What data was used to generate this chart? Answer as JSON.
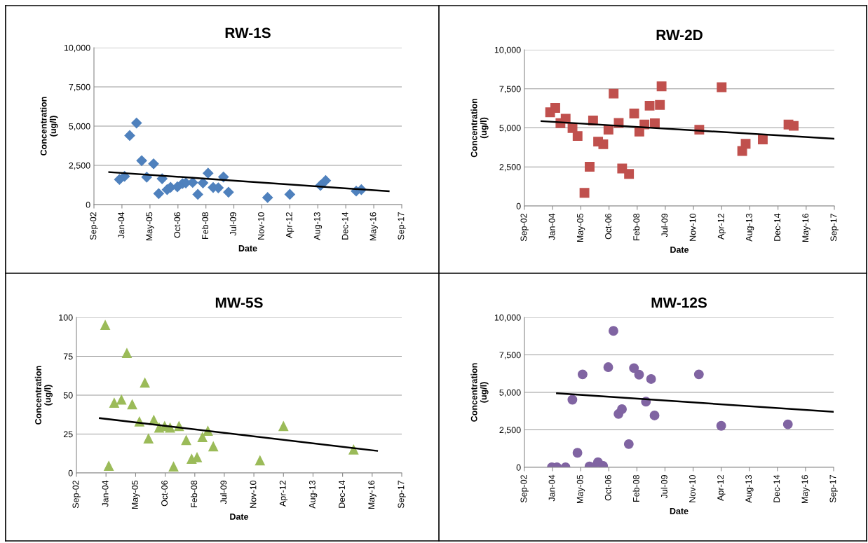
{
  "chart_data": [
    {
      "type": "scatter",
      "title": "RW-1S",
      "xlabel": "Date",
      "ylabel": "Concentration\n(ug/l)",
      "marker": "diamond",
      "grid": "y",
      "xlim": [
        "2002-09-01",
        "2017-09-22"
      ],
      "xticks": [
        {
          "value": "2002-09-01",
          "label": "Sep-02"
        },
        {
          "value": "2004-01-14",
          "label": "Jan-04"
        },
        {
          "value": "2005-05-29",
          "label": "May-05"
        },
        {
          "value": "2006-10-11",
          "label": "Oct-06"
        },
        {
          "value": "2008-02-23",
          "label": "Feb-08"
        },
        {
          "value": "2009-07-06",
          "label": "Jul-09"
        },
        {
          "value": "2010-11-18",
          "label": "Nov-10"
        },
        {
          "value": "2012-04-01",
          "label": "Apr-12"
        },
        {
          "value": "2013-08-14",
          "label": "Aug-13"
        },
        {
          "value": "2014-12-27",
          "label": "Dec-14"
        },
        {
          "value": "2016-05-10",
          "label": "May-16"
        },
        {
          "value": "2017-09-22",
          "label": "Sep-17"
        }
      ],
      "ylim": [
        0,
        10000
      ],
      "yticks": [
        {
          "value": 0,
          "label": "0"
        },
        {
          "value": 2500,
          "label": "2,500"
        },
        {
          "value": 5000,
          "label": "5,000"
        },
        {
          "value": 7500,
          "label": "7,500"
        },
        {
          "value": 10000,
          "label": "10,000"
        }
      ],
      "series": [
        {
          "color": "#4f81bd",
          "x": [
            "2003-12",
            "2004-03",
            "2004-06",
            "2004-10",
            "2005-01",
            "2005-04",
            "2005-08",
            "2005-11",
            "2006-01",
            "2006-04",
            "2006-06",
            "2006-10",
            "2007-01",
            "2007-03",
            "2007-07",
            "2007-10",
            "2008-01",
            "2008-04",
            "2008-07",
            "2008-10",
            "2009-01",
            "2009-04",
            "2011-03",
            "2012-04",
            "2013-10",
            "2014-01",
            "2015-07",
            "2015-10"
          ],
          "values": [
            1600,
            1800,
            4400,
            5200,
            2800,
            1750,
            2600,
            700,
            1650,
            950,
            1100,
            1130,
            1340,
            1380,
            1410,
            650,
            1380,
            2000,
            1090,
            1070,
            1760,
            790,
            450,
            650,
            1220,
            1530,
            860,
            950
          ]
        },
        {
          "type": "line",
          "color": "#000000",
          "marker": "none",
          "x": [
            "2003-06",
            "2017-02"
          ],
          "values": [
            2070,
            850
          ]
        }
      ]
    },
    {
      "type": "scatter",
      "title": "RW-2D",
      "xlabel": "Date",
      "ylabel": "Concentration\n(ug/l)",
      "marker": "square",
      "grid": "y",
      "xlim": [
        "2002-09-01",
        "2017-09-22"
      ],
      "xticks": [
        {
          "value": "2002-09-01",
          "label": "Sep-02"
        },
        {
          "value": "2004-01-14",
          "label": "Jan-04"
        },
        {
          "value": "2005-05-29",
          "label": "May-05"
        },
        {
          "value": "2006-10-11",
          "label": "Oct-06"
        },
        {
          "value": "2008-02-23",
          "label": "Feb-08"
        },
        {
          "value": "2009-07-06",
          "label": "Jul-09"
        },
        {
          "value": "2010-11-18",
          "label": "Nov-10"
        },
        {
          "value": "2012-04-01",
          "label": "Apr-12"
        },
        {
          "value": "2013-08-14",
          "label": "Aug-13"
        },
        {
          "value": "2014-12-27",
          "label": "Dec-14"
        },
        {
          "value": "2016-05-10",
          "label": "May-16"
        },
        {
          "value": "2017-09-22",
          "label": "Sep-17"
        }
      ],
      "ylim": [
        0,
        10000
      ],
      "yticks": [
        {
          "value": 0,
          "label": "0"
        },
        {
          "value": 2500,
          "label": "2,500"
        },
        {
          "value": 5000,
          "label": "5,000"
        },
        {
          "value": 7500,
          "label": "7,500"
        },
        {
          "value": 10000,
          "label": "10,000"
        }
      ],
      "series": [
        {
          "color": "#c0504d",
          "x": [
            "2003-12",
            "2004-03",
            "2004-06",
            "2004-09",
            "2005-01",
            "2005-04",
            "2005-08",
            "2005-11",
            "2006-01",
            "2006-04",
            "2006-07",
            "2006-10",
            "2007-01",
            "2007-04",
            "2007-06",
            "2007-10",
            "2008-01",
            "2008-04",
            "2008-07",
            "2008-10",
            "2009-01",
            "2009-04",
            "2009-05",
            "2011-03",
            "2012-04",
            "2013-04",
            "2013-06",
            "2014-04",
            "2015-07",
            "2015-10"
          ],
          "values": [
            6000,
            6280,
            5300,
            5580,
            4990,
            4480,
            840,
            2510,
            5470,
            4120,
            3950,
            4880,
            7190,
            5320,
            2400,
            2050,
            5920,
            4760,
            5220,
            6420,
            5290,
            6470,
            7660,
            4880,
            7600,
            3520,
            3980,
            4260,
            5210,
            5130
          ]
        },
        {
          "type": "line",
          "color": "#000000",
          "marker": "none",
          "x": [
            "2003-07",
            "2017-09-22"
          ],
          "values": [
            5430,
            4300
          ]
        }
      ]
    },
    {
      "type": "scatter",
      "title": "MW-5S",
      "xlabel": "Date",
      "ylabel": "Concentration\n(ug/l)",
      "marker": "triangle",
      "grid": "y",
      "xlim": [
        "2002-09-01",
        "2017-09-22"
      ],
      "xticks": [
        {
          "value": "2002-09-01",
          "label": "Sep-02"
        },
        {
          "value": "2004-01-14",
          "label": "Jan-04"
        },
        {
          "value": "2005-05-29",
          "label": "May-05"
        },
        {
          "value": "2006-10-11",
          "label": "Oct-06"
        },
        {
          "value": "2008-02-23",
          "label": "Feb-08"
        },
        {
          "value": "2009-07-06",
          "label": "Jul-09"
        },
        {
          "value": "2010-11-18",
          "label": "Nov-10"
        },
        {
          "value": "2012-04-01",
          "label": "Apr-12"
        },
        {
          "value": "2013-08-14",
          "label": "Aug-13"
        },
        {
          "value": "2014-12-27",
          "label": "Dec-14"
        },
        {
          "value": "2016-05-10",
          "label": "May-16"
        },
        {
          "value": "2017-09-22",
          "label": "Sep-17"
        }
      ],
      "ylim": [
        0,
        100
      ],
      "yticks": [
        0,
        25,
        50,
        75,
        100
      ],
      "series": [
        {
          "color": "#9bbb59",
          "x": [
            "2004-01",
            "2004-03",
            "2004-06",
            "2004-10",
            "2005-01",
            "2005-04",
            "2005-08",
            "2005-11",
            "2006-01",
            "2006-04",
            "2006-07",
            "2006-10",
            "2007-01",
            "2007-03",
            "2007-06",
            "2007-10",
            "2008-01",
            "2008-04",
            "2008-07",
            "2008-10",
            "2009-01",
            "2011-03",
            "2012-04",
            "2015-07"
          ],
          "values": [
            95,
            4.5,
            45,
            47,
            77,
            44,
            33,
            58,
            22,
            34,
            29,
            30,
            29,
            4,
            30,
            21,
            9,
            10,
            23,
            27,
            17,
            8,
            30,
            15
          ]
        },
        {
          "type": "line",
          "color": "#000000",
          "marker": "none",
          "x": [
            "2003-10",
            "2016-08"
          ],
          "values": [
            35.2,
            14.2
          ]
        }
      ]
    },
    {
      "type": "scatter",
      "title": "MW-12S",
      "xlabel": "Date",
      "ylabel": "Concentration\n(ug/l)",
      "marker": "circle",
      "grid": "y",
      "xlim": [
        "2002-09-01",
        "2017-09-22"
      ],
      "xticks": [
        {
          "value": "2002-09-01",
          "label": "Sep-02"
        },
        {
          "value": "2004-01-14",
          "label": "Jan-04"
        },
        {
          "value": "2005-05-29",
          "label": "May-05"
        },
        {
          "value": "2006-10-11",
          "label": "Oct-06"
        },
        {
          "value": "2008-02-23",
          "label": "Feb-08"
        },
        {
          "value": "2009-07-06",
          "label": "Jul-09"
        },
        {
          "value": "2010-11-18",
          "label": "Nov-10"
        },
        {
          "value": "2012-04-01",
          "label": "Apr-12"
        },
        {
          "value": "2013-08-14",
          "label": "Aug-13"
        },
        {
          "value": "2014-12-27",
          "label": "Dec-14"
        },
        {
          "value": "2016-05-10",
          "label": "May-16"
        },
        {
          "value": "2017-09-22",
          "label": "Sep-17"
        }
      ],
      "ylim": [
        0,
        10000
      ],
      "yticks": [
        {
          "value": 0,
          "label": "0"
        },
        {
          "value": 2500,
          "label": "2,500"
        },
        {
          "value": 5000,
          "label": "5,000"
        },
        {
          "value": 7500,
          "label": "7,500"
        },
        {
          "value": 10000,
          "label": "10,000"
        }
      ],
      "series": [
        {
          "color": "#8064a2",
          "x": [
            "2004-01",
            "2004-04",
            "2004-09",
            "2005-01",
            "2005-04",
            "2005-07",
            "2005-11",
            "2006-01",
            "2006-04",
            "2006-07",
            "2006-10",
            "2007-01",
            "2007-04",
            "2007-06",
            "2007-10",
            "2008-01",
            "2008-04",
            "2008-08",
            "2008-11",
            "2009-01",
            "2011-03",
            "2012-04",
            "2015-07"
          ],
          "values": [
            0,
            0,
            0,
            4510,
            970,
            6200,
            60,
            0,
            340,
            100,
            6680,
            9100,
            3560,
            3880,
            1550,
            6620,
            6180,
            4380,
            5890,
            3460,
            6200,
            2770,
            2870
          ]
        },
        {
          "type": "line",
          "color": "#000000",
          "marker": "none",
          "x": [
            "2004-04",
            "2017-09-22"
          ],
          "values": [
            4940,
            3700
          ]
        }
      ]
    }
  ]
}
